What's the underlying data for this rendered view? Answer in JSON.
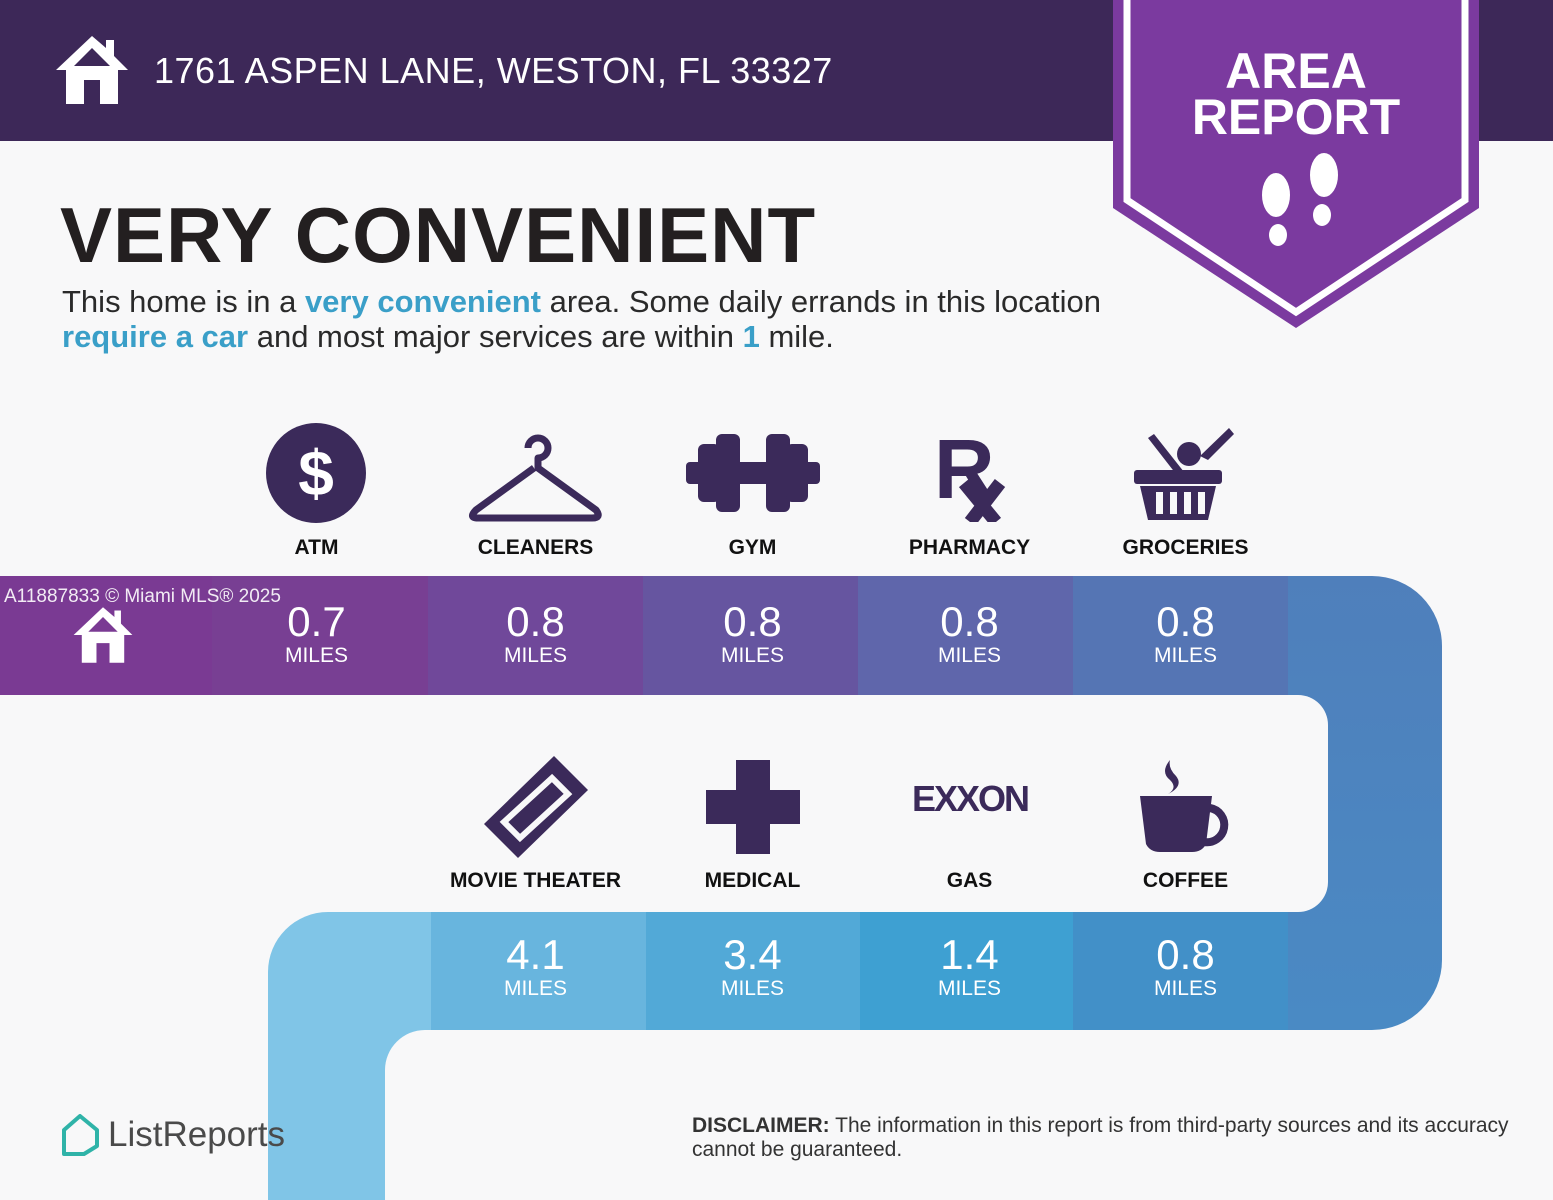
{
  "header": {
    "address": "1761 ASPEN LANE, WESTON, FL 33327",
    "badge_line1": "AREA",
    "badge_line2": "REPORT"
  },
  "summary": {
    "title": "VERY CONVENIENT",
    "desc_1": "This home is in a ",
    "desc_hl1": "very convenient",
    "desc_2": " area. Some daily errands in this location ",
    "desc_hl2": "require a car",
    "desc_3": " and most major services are within ",
    "desc_hl3": "1",
    "desc_4": " mile."
  },
  "top_row": [
    {
      "label": "ATM",
      "value": "0.7",
      "unit": "MILES",
      "icon": "dollar-icon"
    },
    {
      "label": "CLEANERS",
      "value": "0.8",
      "unit": "MILES",
      "icon": "hanger-icon"
    },
    {
      "label": "GYM",
      "value": "0.8",
      "unit": "MILES",
      "icon": "dumbbell-icon"
    },
    {
      "label": "PHARMACY",
      "value": "0.8",
      "unit": "MILES",
      "icon": "rx-icon"
    },
    {
      "label": "GROCERIES",
      "value": "0.8",
      "unit": "MILES",
      "icon": "basket-icon"
    }
  ],
  "bottom_row": [
    {
      "label": "MOVIE THEATER",
      "value": "4.1",
      "unit": "MILES",
      "icon": "ticket-icon"
    },
    {
      "label": "MEDICAL",
      "value": "3.4",
      "unit": "MILES",
      "icon": "cross-icon"
    },
    {
      "label": "GAS",
      "value": "1.4",
      "unit": "MILES",
      "icon": "exxon-logo",
      "logo_text": "EXXON"
    },
    {
      "label": "COFFEE",
      "value": "0.8",
      "unit": "MILES",
      "icon": "coffee-icon"
    }
  ],
  "watermark": "A11887833 © Miami MLS® 2025",
  "footer": {
    "brand": "ListReports",
    "disclaimer_bold": "DISCLAIMER:",
    "disclaimer": " The information in this report is from third-party sources and its accuracy cannot be guaranteed."
  },
  "colors": {
    "header": "#3d2858",
    "badge": "#7b3a9f",
    "icon": "#3b2a5a",
    "highlight": "#3a9fc8"
  }
}
